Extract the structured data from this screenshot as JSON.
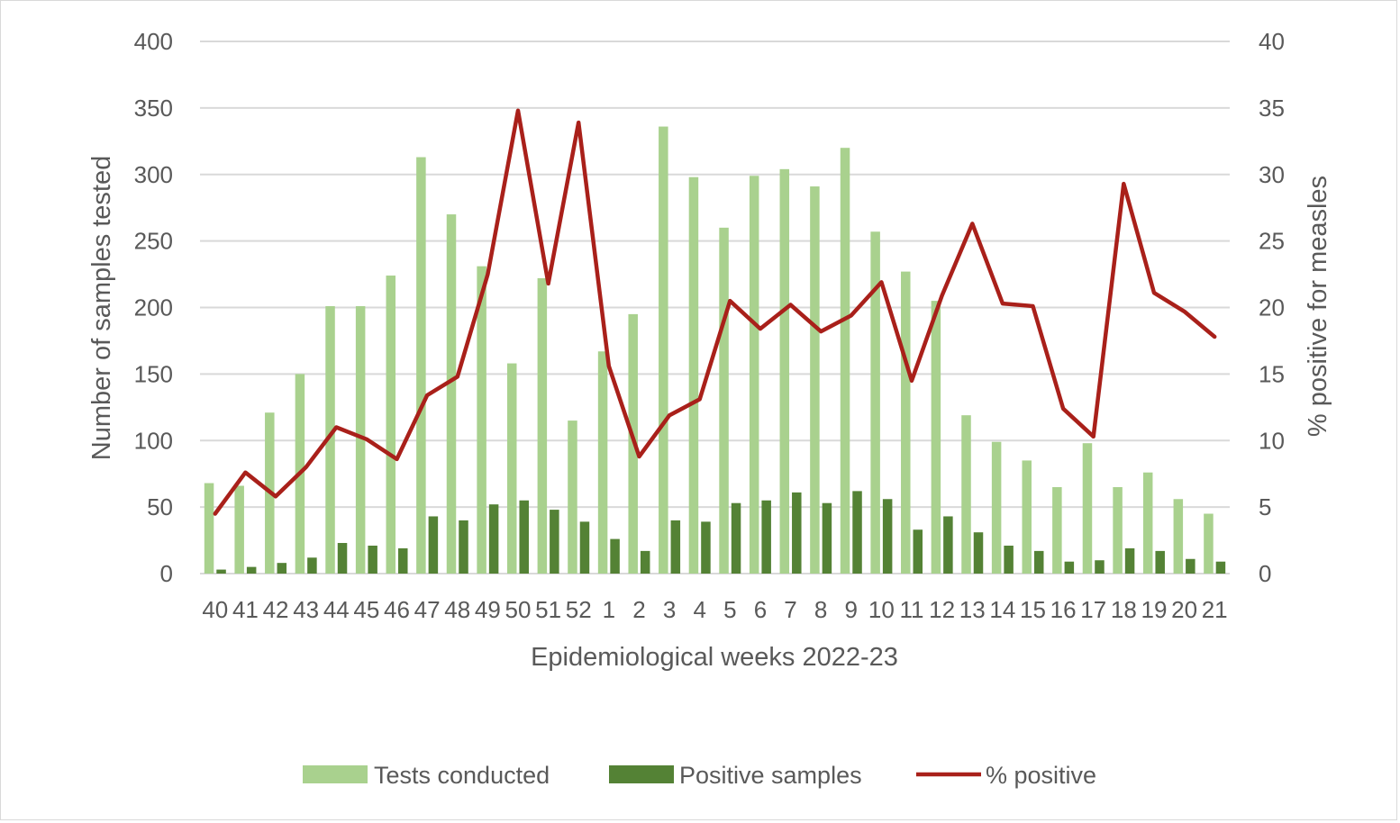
{
  "chart_data": {
    "type": "bar",
    "xlabel": "Epidemiological weeks 2022-23",
    "ylabel": "Number of samples tested",
    "y2label": "% positive for measles",
    "ylim": [
      0,
      400
    ],
    "y2lim": [
      0,
      40
    ],
    "yticks": [
      "0",
      "50",
      "100",
      "150",
      "200",
      "250",
      "300",
      "350",
      "400"
    ],
    "y2ticks": [
      "0",
      "5",
      "10",
      "15",
      "20",
      "25",
      "30",
      "35",
      "40"
    ],
    "grid": true,
    "legend_position": "bottom",
    "categories": [
      "40",
      "41",
      "42",
      "43",
      "44",
      "45",
      "46",
      "47",
      "48",
      "49",
      "50",
      "51",
      "52",
      "1",
      "2",
      "3",
      "4",
      "5",
      "6",
      "7",
      "8",
      "9",
      "10",
      "11",
      "12",
      "13",
      "14",
      "15",
      "16",
      "17",
      "18",
      "19",
      "20",
      "21"
    ],
    "series": [
      {
        "name": "Tests conducted",
        "type": "bar",
        "axis": "left",
        "color": "#a9d18e",
        "values": [
          68,
          66,
          121,
          150,
          201,
          201,
          224,
          313,
          270,
          231,
          158,
          222,
          115,
          167,
          195,
          336,
          298,
          260,
          299,
          304,
          291,
          320,
          257,
          227,
          205,
          119,
          99,
          85,
          65,
          98,
          65,
          76,
          56,
          45
        ]
      },
      {
        "name": "Positive samples",
        "type": "bar",
        "axis": "left",
        "color": "#548235",
        "values": [
          3,
          5,
          8,
          12,
          23,
          21,
          19,
          43,
          40,
          52,
          55,
          48,
          39,
          26,
          17,
          40,
          39,
          53,
          55,
          61,
          53,
          62,
          56,
          33,
          43,
          31,
          21,
          17,
          9,
          10,
          19,
          17,
          11,
          9
        ]
      },
      {
        "name": "% positive",
        "type": "line",
        "axis": "right",
        "color": "#a9201a",
        "values": [
          4.5,
          7.6,
          5.8,
          8.0,
          11.0,
          10.1,
          8.6,
          13.4,
          14.8,
          22.5,
          34.8,
          21.8,
          33.9,
          15.6,
          8.8,
          11.9,
          13.1,
          20.5,
          18.4,
          20.2,
          18.2,
          19.4,
          21.9,
          14.5,
          20.9,
          26.3,
          20.3,
          20.1,
          12.4,
          10.3,
          29.3,
          21.1,
          19.7,
          17.8
        ]
      }
    ]
  }
}
